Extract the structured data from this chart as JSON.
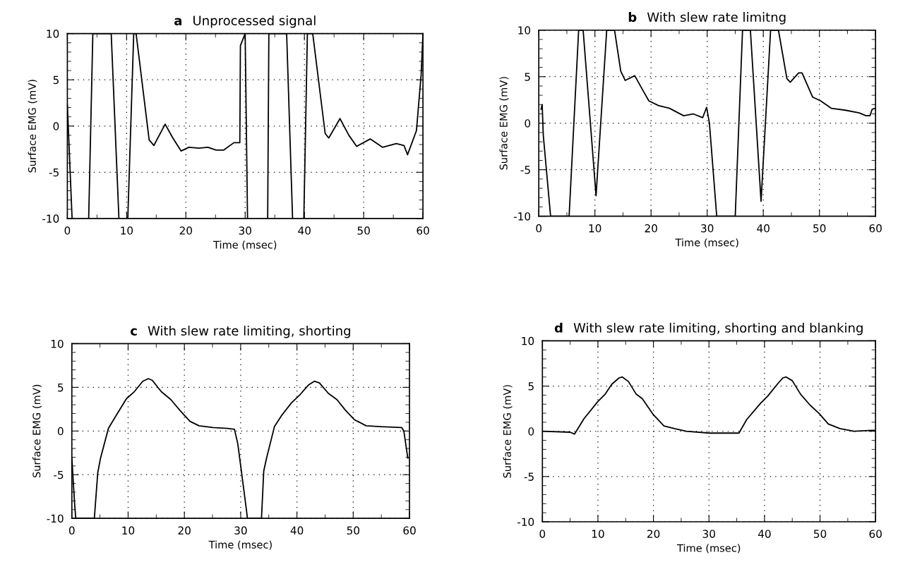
{
  "chart_data": [
    {
      "type": "line",
      "title": "a  Unprocessed signal",
      "xlabel": "Time (msec)",
      "ylabel": "Surface EMG (mV)",
      "grid": true,
      "line_style": "solid",
      "marker": "none",
      "xlim": [
        0,
        60
      ],
      "ylim": [
        -10,
        10
      ],
      "xticks": [
        0,
        {
          "value": 5,
          "label": null
        },
        10,
        {
          "value": 15,
          "label": null
        },
        20,
        {
          "value": 25,
          "label": null
        },
        30,
        {
          "value": 35,
          "label": null
        },
        40,
        {
          "value": 45,
          "label": null
        },
        50,
        {
          "value": 55,
          "label": null
        },
        60
      ],
      "yticks": [
        -10,
        {
          "value": -9,
          "label": null
        },
        {
          "value": -8,
          "label": null
        },
        {
          "value": -7,
          "label": null
        },
        {
          "value": -6,
          "label": null
        },
        -5,
        {
          "value": -4,
          "label": null
        },
        {
          "value": -3,
          "label": null
        },
        {
          "value": -2,
          "label": null
        },
        {
          "value": -1,
          "label": null
        },
        0,
        {
          "value": 1,
          "label": null
        },
        {
          "value": 2,
          "label": null
        },
        {
          "value": 3,
          "label": null
        },
        {
          "value": 4,
          "label": null
        },
        5,
        {
          "value": 6,
          "label": null
        },
        {
          "value": 7,
          "label": null
        },
        {
          "value": 8,
          "label": null
        },
        {
          "value": 9,
          "label": null
        },
        10
      ],
      "series": [
        {
          "color": "#000000",
          "x": [
            0,
            0.8,
            3.6,
            4.3,
            7.4,
            8.7,
            10.2,
            11.2,
            11.6,
            13.8,
            14.6,
            16.5,
            17.8,
            19.2,
            20.5,
            22.2,
            23.7,
            25.1,
            26.4,
            28.1,
            29.1,
            29.2,
            30.0,
            30.4,
            33.8,
            34.0,
            37.0,
            38.0,
            39.9,
            40.5,
            41.4,
            43.5,
            44.1,
            46.0,
            47.5,
            48.8,
            51.1,
            53.2,
            55.5,
            56.8,
            57.4,
            58.9,
            59.7,
            60
          ],
          "values": [
            2.3,
            -10,
            -10,
            10,
            10,
            -10,
            -10,
            10,
            10,
            -1.5,
            -2.1,
            0.2,
            -1.3,
            -2.7,
            -2.3,
            -2.4,
            -2.3,
            -2.6,
            -2.6,
            -1.8,
            -1.8,
            8.7,
            10,
            -10,
            -10,
            10,
            10,
            -10,
            -10,
            10,
            10,
            -0.8,
            -1.3,
            0.8,
            -1.0,
            -2.2,
            -1.4,
            -2.3,
            -1.9,
            -2.1,
            -3.1,
            -0.5,
            5.6,
            10
          ]
        }
      ]
    },
    {
      "type": "line",
      "title": "b  With slew rate limitng",
      "xlabel": "Time (msec)",
      "ylabel": "Surface EMG (mV)",
      "grid": true,
      "line_style": "solid",
      "marker": "none",
      "xlim": [
        0,
        60
      ],
      "ylim": [
        -10,
        10
      ],
      "xticks": [
        0,
        {
          "value": 5,
          "label": null
        },
        10,
        {
          "value": 15,
          "label": null
        },
        20,
        {
          "value": 25,
          "label": null
        },
        30,
        {
          "value": 35,
          "label": null
        },
        40,
        {
          "value": 45,
          "label": null
        },
        50,
        {
          "value": 55,
          "label": null
        },
        60
      ],
      "yticks": [
        -10,
        {
          "value": -9,
          "label": null
        },
        {
          "value": -8,
          "label": null
        },
        {
          "value": -7,
          "label": null
        },
        {
          "value": -6,
          "label": null
        },
        -5,
        {
          "value": -4,
          "label": null
        },
        {
          "value": -3,
          "label": null
        },
        {
          "value": -2,
          "label": null
        },
        {
          "value": -1,
          "label": null
        },
        0,
        {
          "value": 1,
          "label": null
        },
        {
          "value": 2,
          "label": null
        },
        {
          "value": 3,
          "label": null
        },
        {
          "value": 4,
          "label": null
        },
        5,
        {
          "value": 6,
          "label": null
        },
        {
          "value": 7,
          "label": null
        },
        {
          "value": 8,
          "label": null
        },
        {
          "value": 9,
          "label": null
        },
        10
      ],
      "series": [
        {
          "color": "#000000",
          "x": [
            0.4,
            0.6,
            0.8,
            2.1,
            5.4,
            7.1,
            7.9,
            10.2,
            12.1,
            13.5,
            14.6,
            15.4,
            17.1,
            18.3,
            19.6,
            21.3,
            23.3,
            25.8,
            27.5,
            29.2,
            29.9,
            30.4,
            31.7,
            35.0,
            36.3,
            37.7,
            39.6,
            41.3,
            42.7,
            44.2,
            44.8,
            46.3,
            46.9,
            48.8,
            50.2,
            52.1,
            54.6,
            57.1,
            58.3,
            59.0,
            59.4,
            60
          ],
          "values": [
            1.5,
            2.0,
            -1.3,
            -10,
            -10,
            10,
            10,
            -7.8,
            10,
            10,
            5.6,
            4.6,
            5.1,
            3.8,
            2.4,
            1.9,
            1.6,
            0.8,
            1.0,
            0.6,
            1.7,
            0,
            -10,
            -10,
            10,
            10,
            -8.4,
            10,
            10,
            4.8,
            4.4,
            5.4,
            5.4,
            2.8,
            2.4,
            1.6,
            1.4,
            1.1,
            0.8,
            0.8,
            1.5,
            1.6
          ]
        }
      ]
    },
    {
      "type": "line",
      "title": "c  With slew rate limiting, shorting",
      "xlabel": "Time (msec)",
      "ylabel": "Surface EMG (mV)",
      "grid": true,
      "line_style": "solid",
      "marker": "none",
      "xlim": [
        0,
        60
      ],
      "ylim": [
        -10,
        10
      ],
      "xticks": [
        0,
        {
          "value": 5,
          "label": null
        },
        10,
        {
          "value": 15,
          "label": null
        },
        20,
        {
          "value": 25,
          "label": null
        },
        30,
        {
          "value": 35,
          "label": null
        },
        40,
        {
          "value": 45,
          "label": null
        },
        50,
        {
          "value": 55,
          "label": null
        },
        60
      ],
      "yticks": [
        -10,
        {
          "value": -9,
          "label": null
        },
        {
          "value": -8,
          "label": null
        },
        {
          "value": -7,
          "label": null
        },
        {
          "value": -6,
          "label": null
        },
        -5,
        {
          "value": -4,
          "label": null
        },
        {
          "value": -3,
          "label": null
        },
        {
          "value": -2,
          "label": null
        },
        {
          "value": -1,
          "label": null
        },
        0,
        {
          "value": 1,
          "label": null
        },
        {
          "value": 2,
          "label": null
        },
        {
          "value": 3,
          "label": null
        },
        {
          "value": 4,
          "label": null
        },
        5,
        {
          "value": 6,
          "label": null
        },
        {
          "value": 7,
          "label": null
        },
        {
          "value": 8,
          "label": null
        },
        {
          "value": 9,
          "label": null
        },
        10
      ],
      "series": [
        {
          "color": "#000000",
          "x": [
            0,
            0.5,
            0.7,
            4.0,
            4.6,
            5.1,
            6.5,
            7.8,
            9.7,
            11.1,
            12.6,
            13.6,
            14.3,
            15.9,
            17.6,
            19.3,
            21.0,
            22.6,
            25.1,
            27.7,
            28.9,
            29.5,
            31.0,
            31.2,
            33.7,
            34.1,
            34.6,
            36.0,
            37.3,
            39.0,
            40.6,
            42.1,
            43.1,
            44.0,
            45.6,
            47.1,
            48.6,
            50.2,
            52.3,
            54.9,
            58.6,
            59.0,
            59.7
          ],
          "values": [
            -3.1,
            -8.4,
            -10,
            -10,
            -4.8,
            -3.1,
            0.3,
            1.7,
            3.7,
            4.5,
            5.7,
            6.0,
            5.8,
            4.5,
            3.6,
            2.3,
            1.1,
            0.6,
            0.4,
            0.3,
            0.2,
            -1.5,
            -8.9,
            -10,
            -10,
            -4.6,
            -3.1,
            0.5,
            1.8,
            3.2,
            4.2,
            5.3,
            5.7,
            5.5,
            4.3,
            3.6,
            2.4,
            1.3,
            0.6,
            0.5,
            0.4,
            0,
            -3.1
          ]
        }
      ]
    },
    {
      "type": "line",
      "title": "d  With slew rate limiting, shorting and blanking",
      "xlabel": "Time (msec)",
      "ylabel": "Surface EMG (mV)",
      "grid": true,
      "line_style": "solid",
      "marker": "none",
      "xlim": [
        0,
        60
      ],
      "ylim": [
        -10,
        10
      ],
      "xticks": [
        0,
        {
          "value": 5,
          "label": null
        },
        10,
        {
          "value": 15,
          "label": null
        },
        20,
        {
          "value": 25,
          "label": null
        },
        30,
        {
          "value": 35,
          "label": null
        },
        40,
        {
          "value": 45,
          "label": null
        },
        50,
        {
          "value": 55,
          "label": null
        },
        60
      ],
      "yticks": [
        -10,
        {
          "value": -9,
          "label": null
        },
        {
          "value": -8,
          "label": null
        },
        {
          "value": -7,
          "label": null
        },
        {
          "value": -6,
          "label": null
        },
        -5,
        {
          "value": -4,
          "label": null
        },
        {
          "value": -3,
          "label": null
        },
        {
          "value": -2,
          "label": null
        },
        {
          "value": -1,
          "label": null
        },
        0,
        {
          "value": 1,
          "label": null
        },
        {
          "value": 2,
          "label": null
        },
        {
          "value": 3,
          "label": null
        },
        {
          "value": 4,
          "label": null
        },
        5,
        {
          "value": 6,
          "label": null
        },
        {
          "value": 7,
          "label": null
        },
        {
          "value": 8,
          "label": null
        },
        {
          "value": 9,
          "label": null
        },
        10
      ],
      "series": [
        {
          "color": "#000000",
          "x": [
            0.1,
            5.0,
            5.8,
            7.5,
            10.0,
            11.3,
            12.5,
            13.8,
            14.4,
            15.5,
            16.9,
            18.0,
            19.9,
            21.9,
            23.8,
            25.9,
            30.1,
            35.4,
            36.8,
            39.3,
            40.6,
            42.3,
            43.3,
            43.9,
            45.0,
            46.5,
            48.2,
            49.8,
            51.5,
            53.6,
            56.1,
            59.3,
            60
          ],
          "values": [
            0,
            -0.1,
            -0.3,
            1.4,
            3.3,
            4.1,
            5.2,
            5.9,
            6.0,
            5.5,
            4.1,
            3.6,
            1.9,
            0.6,
            0.3,
            0,
            -0.2,
            -0.2,
            1.3,
            3.1,
            3.9,
            5.2,
            5.9,
            6.0,
            5.6,
            4.1,
            2.9,
            2.0,
            0.8,
            0.3,
            0,
            0.1,
            0.1
          ]
        }
      ]
    }
  ]
}
